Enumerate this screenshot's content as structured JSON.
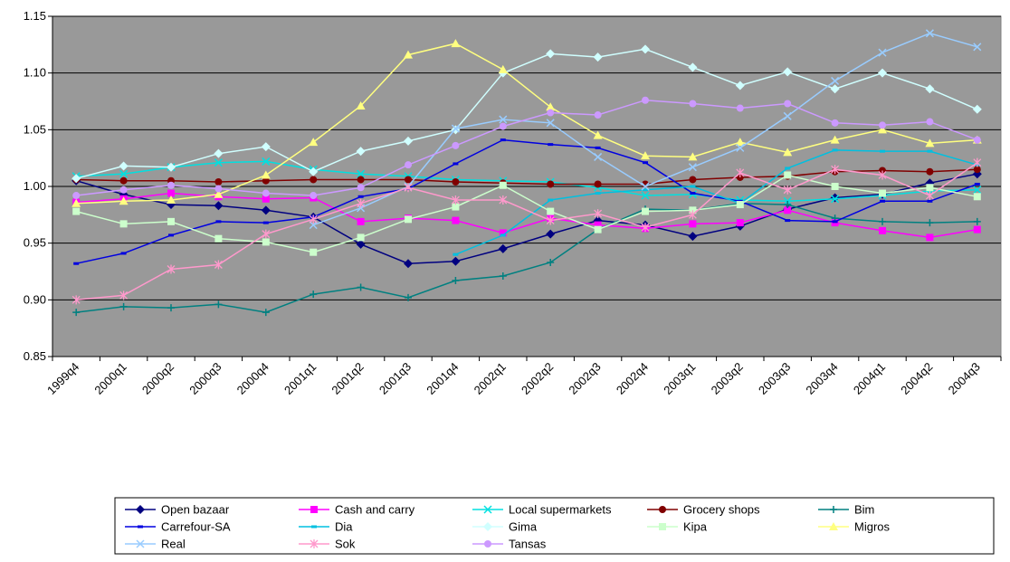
{
  "chart_data": {
    "type": "line",
    "title": "",
    "xlabel": "",
    "ylabel": "",
    "ylim": [
      0.85,
      1.15
    ],
    "yticks": [
      "0.85",
      "0.90",
      "0.95",
      "1.00",
      "1.05",
      "1.10",
      "1.15"
    ],
    "plot_background": "#999999",
    "grid": "horizontal",
    "legend_position": "bottom",
    "categories": [
      "1999q4",
      "2000q1",
      "2000q2",
      "2000q3",
      "2000q4",
      "2001q1",
      "2001q2",
      "2001q3",
      "2001q4",
      "2002q1",
      "2002q2",
      "2002q3",
      "2002q4",
      "2003q1",
      "2003q2",
      "2003q3",
      "2003q4",
      "2004q1",
      "2004q2",
      "2004q3"
    ],
    "series": [
      {
        "name": "Open bazaar",
        "color": "#000080",
        "marker": "diamond",
        "values": [
          1.005,
          0.993,
          0.984,
          0.983,
          0.979,
          0.973,
          0.949,
          0.932,
          0.934,
          0.945,
          0.958,
          0.97,
          0.966,
          0.956,
          0.965,
          0.98,
          0.99,
          0.993,
          1.003,
          1.011
        ]
      },
      {
        "name": "Cash and carry",
        "color": "#ff00ff",
        "marker": "square",
        "values": [
          0.986,
          0.989,
          0.994,
          0.991,
          0.989,
          0.99,
          0.969,
          0.972,
          0.97,
          0.959,
          0.972,
          0.966,
          0.963,
          0.967,
          0.968,
          0.979,
          0.968,
          0.961,
          0.955,
          0.962
        ]
      },
      {
        "name": "Local supermarkets",
        "color": "#00e0e0",
        "marker": "x",
        "values": [
          1.009,
          1.011,
          1.017,
          1.021,
          1.022,
          1.015,
          1.011,
          1.009,
          1.006,
          1.005,
          1.004,
          0.999,
          0.992,
          0.993,
          0.988,
          0.987,
          0.989,
          0.992,
          0.996,
          0.997
        ]
      },
      {
        "name": "Grocery shops",
        "color": "#800000",
        "marker": "circle",
        "values": [
          1.006,
          1.005,
          1.005,
          1.004,
          1.005,
          1.006,
          1.006,
          1.006,
          1.004,
          1.003,
          1.002,
          1.002,
          1.002,
          1.006,
          1.008,
          1.009,
          1.013,
          1.014,
          1.013,
          1.015
        ]
      },
      {
        "name": "Bim",
        "color": "#008080",
        "marker": "plus",
        "values": [
          0.889,
          0.894,
          0.893,
          0.896,
          0.889,
          0.905,
          0.911,
          0.902,
          0.917,
          0.921,
          0.933,
          0.962,
          0.98,
          0.979,
          0.985,
          0.984,
          0.972,
          0.969,
          0.968,
          0.969
        ]
      },
      {
        "name": "Carrefour-SA",
        "color": "#0000e0",
        "marker": "dash",
        "values": [
          0.932,
          0.941,
          0.957,
          0.969,
          0.968,
          0.973,
          0.991,
          0.998,
          1.02,
          1.041,
          1.037,
          1.034,
          1.021,
          0.994,
          0.987,
          0.97,
          0.969,
          0.987,
          0.987,
          1.002
        ]
      },
      {
        "name": "Dia",
        "color": "#00c0e0",
        "marker": "dash",
        "values": [
          null,
          null,
          null,
          null,
          null,
          null,
          null,
          null,
          0.94,
          0.957,
          0.988,
          0.994,
          0.997,
          1.0,
          0.985,
          1.016,
          1.032,
          1.031,
          1.031,
          1.019
        ]
      },
      {
        "name": "Gima",
        "color": "#d0ffff",
        "marker": "diamond",
        "values": [
          1.007,
          1.018,
          1.017,
          1.029,
          1.035,
          1.013,
          1.031,
          1.04,
          1.05,
          1.1,
          1.117,
          1.114,
          1.121,
          1.105,
          1.089,
          1.101,
          1.086,
          1.1,
          1.086,
          1.068
        ]
      },
      {
        "name": "Kipa",
        "color": "#ccffcc",
        "marker": "square",
        "values": [
          0.978,
          0.967,
          0.969,
          0.954,
          0.951,
          0.942,
          0.955,
          0.971,
          0.982,
          1.001,
          0.978,
          0.962,
          0.978,
          0.979,
          0.984,
          1.01,
          1.0,
          0.994,
          0.999,
          0.991
        ]
      },
      {
        "name": "Migros",
        "color": "#ffff80",
        "marker": "triangle",
        "values": [
          0.985,
          0.987,
          0.988,
          0.993,
          1.01,
          1.039,
          1.071,
          1.116,
          1.126,
          1.103,
          1.07,
          1.045,
          1.027,
          1.026,
          1.039,
          1.03,
          1.041,
          1.05,
          1.038,
          1.041
        ]
      },
      {
        "name": "Real",
        "color": "#99ccff",
        "marker": "x",
        "values": [
          null,
          null,
          null,
          null,
          null,
          0.966,
          0.981,
          1.0,
          1.051,
          1.059,
          1.056,
          1.026,
          1.0,
          1.017,
          1.034,
          1.062,
          1.093,
          1.118,
          1.135,
          1.123
        ]
      },
      {
        "name": "Sok",
        "color": "#ff99cc",
        "marker": "star",
        "values": [
          0.9,
          0.904,
          0.927,
          0.931,
          0.958,
          0.971,
          0.985,
          0.999,
          0.988,
          0.988,
          0.97,
          0.976,
          0.964,
          0.975,
          1.012,
          0.997,
          1.015,
          1.01,
          0.992,
          1.021
        ]
      },
      {
        "name": "Tansas",
        "color": "#cc99ff",
        "marker": "circle",
        "values": [
          0.992,
          0.997,
          1.001,
          0.998,
          0.994,
          0.992,
          0.999,
          1.019,
          1.036,
          1.053,
          1.065,
          1.063,
          1.076,
          1.073,
          1.069,
          1.073,
          1.056,
          1.054,
          1.057,
          1.041
        ]
      }
    ]
  }
}
